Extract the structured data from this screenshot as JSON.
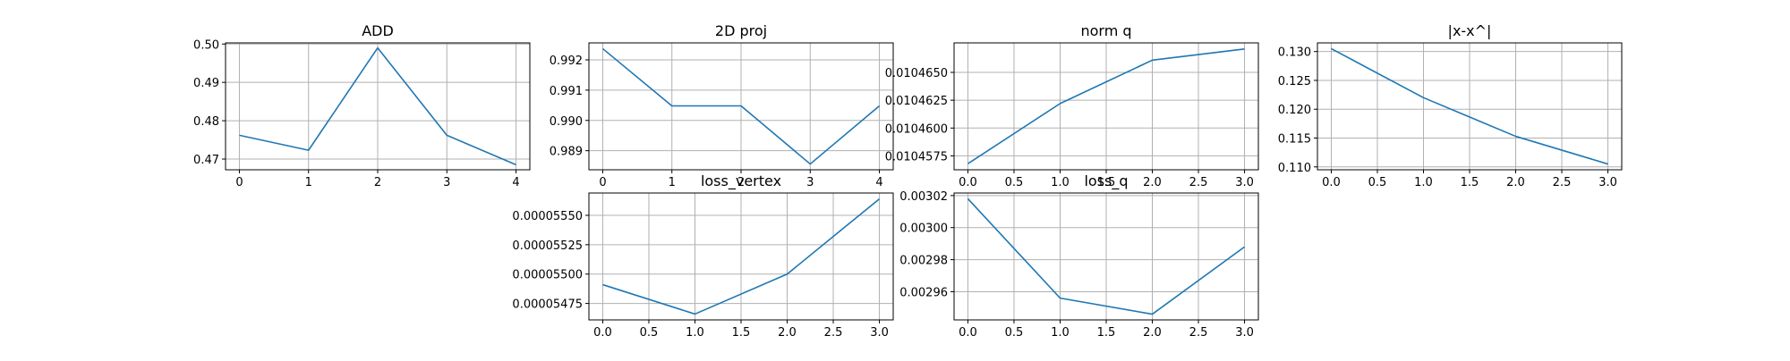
{
  "chart_data": [
    {
      "type": "line",
      "title": "ADD",
      "xlabel": "",
      "ylabel": "",
      "x": [
        0,
        1,
        2,
        3,
        4
      ],
      "series": [
        {
          "values": [
            0.4762,
            0.4723,
            0.499,
            0.4762,
            0.4685
          ]
        }
      ],
      "xlim": [
        -0.2,
        4.2
      ],
      "ylim": [
        0.4672,
        0.5003
      ],
      "xticks": [
        0,
        1,
        2,
        3,
        4
      ],
      "xtick_labels": [
        "0",
        "1",
        "2",
        "3",
        "4"
      ],
      "yticks": [
        0.47,
        0.48,
        0.49,
        0.5
      ],
      "ytick_labels": [
        "0.47",
        "0.48",
        "0.49",
        "0.50"
      ],
      "grid": true
    },
    {
      "type": "line",
      "title": "2D proj",
      "xlabel": "",
      "ylabel": "",
      "x": [
        0,
        1,
        2,
        3,
        4
      ],
      "series": [
        {
          "values": [
            0.99237,
            0.99048,
            0.99048,
            0.98856,
            0.99048
          ]
        }
      ],
      "xlim": [
        -0.2,
        4.2
      ],
      "ylim": [
        0.98837,
        0.99256
      ],
      "xticks": [
        0,
        1,
        2,
        3,
        4
      ],
      "xtick_labels": [
        "0",
        "1",
        "2",
        "3",
        "4"
      ],
      "yticks": [
        0.989,
        0.99,
        0.991,
        0.992
      ],
      "ytick_labels": [
        "0.989",
        "0.990",
        "0.991",
        "0.992"
      ],
      "grid": true
    },
    {
      "type": "line",
      "title": "norm q",
      "xlabel": "",
      "ylabel": "",
      "x": [
        0,
        1,
        2,
        3
      ],
      "series": [
        {
          "values": [
            0.0104568,
            0.0104622,
            0.0104661,
            0.0104671
          ]
        }
      ],
      "xlim": [
        -0.15,
        3.15
      ],
      "ylim": [
        0.01045625,
        0.01046765
      ],
      "xticks": [
        0,
        0.5,
        1,
        1.5,
        2,
        2.5,
        3
      ],
      "xtick_labels": [
        "0.0",
        "0.5",
        "1.0",
        "1.5",
        "2.0",
        "2.5",
        "3.0"
      ],
      "yticks": [
        0.0104575,
        0.01046,
        0.0104625,
        0.010465
      ],
      "ytick_labels": [
        "0.0104575",
        "0.0104600",
        "0.0104625",
        "0.0104650"
      ],
      "grid": true
    },
    {
      "type": "line",
      "title": "|x-x^|",
      "xlabel": "",
      "ylabel": "",
      "x": [
        0,
        1,
        2,
        3
      ],
      "series": [
        {
          "values": [
            0.1305,
            0.122,
            0.1153,
            0.1105
          ]
        }
      ],
      "xlim": [
        -0.15,
        3.15
      ],
      "ylim": [
        0.1095,
        0.1315
      ],
      "xticks": [
        0,
        0.5,
        1,
        1.5,
        2,
        2.5,
        3
      ],
      "xtick_labels": [
        "0.0",
        "0.5",
        "1.0",
        "1.5",
        "2.0",
        "2.5",
        "3.0"
      ],
      "yticks": [
        0.11,
        0.115,
        0.12,
        0.125,
        0.13
      ],
      "ytick_labels": [
        "0.110",
        "0.115",
        "0.120",
        "0.125",
        "0.130"
      ],
      "grid": true
    },
    {
      "type": "line",
      "title": "loss_vertex",
      "xlabel": "",
      "ylabel": "",
      "x": [
        0,
        1,
        2,
        3
      ],
      "series": [
        {
          "values": [
            5.491e-05,
            5.466e-05,
            5.5e-05,
            5.564e-05
          ]
        }
      ],
      "xlim": [
        -0.15,
        3.15
      ],
      "ylim": [
        5.461e-05,
        5.569e-05
      ],
      "xticks": [
        0,
        0.5,
        1,
        1.5,
        2,
        2.5,
        3
      ],
      "xtick_labels": [
        "0.0",
        "0.5",
        "1.0",
        "1.5",
        "2.0",
        "2.5",
        "3.0"
      ],
      "yticks": [
        5.475e-05,
        5.5e-05,
        5.525e-05,
        5.55e-05
      ],
      "ytick_labels": [
        "0.00005475",
        "0.00005500",
        "0.00005525",
        "0.00005550"
      ],
      "grid": true
    },
    {
      "type": "line",
      "title": "loss_q",
      "xlabel": "",
      "ylabel": "",
      "x": [
        0,
        1,
        2,
        3
      ],
      "series": [
        {
          "values": [
            0.003018,
            0.002956,
            0.002946,
            0.002988
          ]
        }
      ],
      "xlim": [
        -0.15,
        3.15
      ],
      "ylim": [
        0.0029424,
        0.0030216
      ],
      "xticks": [
        0,
        0.5,
        1,
        1.5,
        2,
        2.5,
        3
      ],
      "xtick_labels": [
        "0.0",
        "0.5",
        "1.0",
        "1.5",
        "2.0",
        "2.5",
        "3.0"
      ],
      "yticks": [
        0.00296,
        0.00298,
        0.003,
        0.00302
      ],
      "ytick_labels": [
        "0.00296",
        "0.00298",
        "0.00300",
        "0.00302"
      ],
      "grid": true
    }
  ],
  "style": {
    "line_color": "#1f77b4",
    "grid_color": "#b0b0b0",
    "axis_color": "#000000"
  }
}
